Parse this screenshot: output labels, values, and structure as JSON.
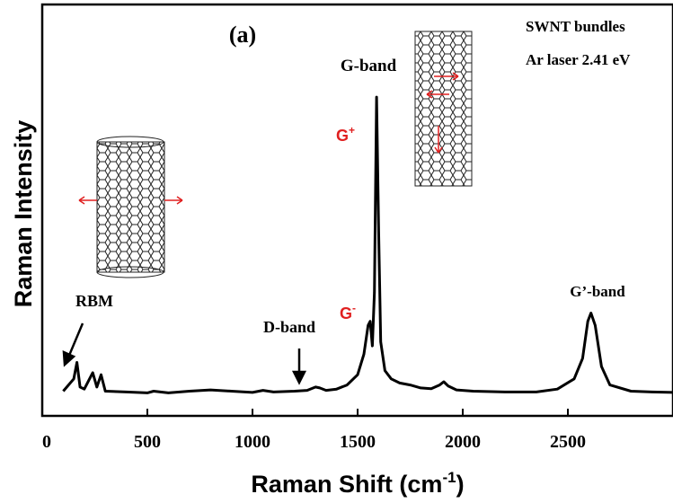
{
  "chart_data": {
    "type": "line",
    "title": "(a)",
    "annotations": [
      "SWNT bundles",
      "Ar laser 2.41 eV",
      "G-band",
      "RBM",
      "D-band",
      "G’-band"
    ],
    "peak_labels": [
      {
        "text": "G",
        "sup": "+"
      },
      {
        "text": "G",
        "sup": "-"
      }
    ],
    "xlabel": [
      "Raman Shift (cm",
      "-1",
      ")"
    ],
    "ylabel": "Raman Intensity",
    "x": [
      100,
      150,
      165,
      180,
      200,
      240,
      260,
      280,
      300,
      400,
      500,
      530,
      600,
      700,
      800,
      900,
      1000,
      1050,
      1100,
      1200,
      1260,
      1300,
      1320,
      1350,
      1400,
      1450,
      1500,
      1530,
      1550,
      1560,
      1570,
      1580,
      1590,
      1600,
      1610,
      1630,
      1660,
      1700,
      1750,
      1800,
      1850,
      1890,
      1910,
      1930,
      1970,
      2050,
      2200,
      2350,
      2450,
      2530,
      2570,
      2595,
      2610,
      2630,
      2660,
      2700,
      2800,
      2900,
      3000
    ],
    "values": [
      6,
      9,
      13,
      7,
      6.5,
      10.5,
      7,
      10,
      6,
      5.8,
      5.6,
      6,
      5.6,
      6,
      6.3,
      6,
      5.7,
      6.2,
      5.8,
      6,
      6.2,
      7,
      6.8,
      6.2,
      6.5,
      7.5,
      10,
      15,
      22,
      23,
      17,
      30,
      77.5,
      45,
      18,
      11,
      9,
      8,
      7.5,
      6.8,
      6.6,
      7.5,
      8.3,
      7.3,
      6.3,
      6,
      5.8,
      5.8,
      6.5,
      9,
      14,
      23,
      25,
      22,
      12,
      7.5,
      6,
      5.8,
      5.7
    ],
    "color": "#000000",
    "xlim": [
      0,
      3000
    ],
    "ylim": [
      0,
      100
    ],
    "xticks": [
      0,
      500,
      1000,
      1500,
      2000,
      2500
    ]
  }
}
